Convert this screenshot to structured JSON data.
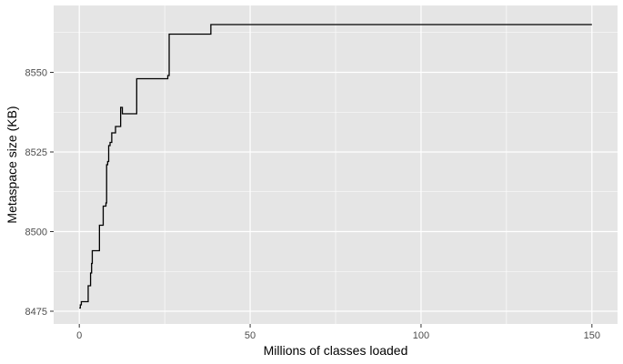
{
  "chart_data": {
    "type": "line",
    "line_style": "step",
    "title": "",
    "xlabel": "Millions of classes loaded",
    "ylabel": "Metaspace size (KB)",
    "xlim": [
      -7.5,
      157.5
    ],
    "ylim": [
      8471.0,
      8571.0
    ],
    "x_ticks": [
      0,
      50,
      100,
      150
    ],
    "x_tick_labels": [
      "0",
      "50",
      "100",
      "150"
    ],
    "x_minor_ticks": [
      25,
      75,
      125
    ],
    "y_ticks": [
      8475,
      8500,
      8525,
      8550
    ],
    "y_tick_labels": [
      "8475",
      "8500",
      "8525",
      "8550"
    ],
    "y_minor_ticks": [
      8487.5,
      8512.5,
      8537.5,
      8562.5
    ],
    "grid": true,
    "legend": "none",
    "colors": {
      "panel_background": "#e5e5e5",
      "grid_line": "#ffffff",
      "series_line": "#000000",
      "tick_text": "#4d4d4d"
    },
    "series": [
      {
        "x": [
          0.0,
          0.3,
          0.6,
          2.3,
          2.6,
          3.0,
          3.3,
          3.6,
          3.8,
          4.0,
          4.4,
          5.5,
          5.9,
          6.4,
          7.0,
          7.5,
          7.8,
          8.0,
          8.3,
          8.6,
          9.0,
          9.5,
          10.6,
          11.2,
          12.1,
          12.6,
          13.0,
          16.8,
          17.4,
          25.9,
          26.3,
          38.0,
          38.5,
          150.0
        ],
        "y": [
          8476.0,
          8477.0,
          8478.0,
          8478.0,
          8483.0,
          8483.0,
          8487.0,
          8490.0,
          8494.0,
          8494.0,
          8494.0,
          8494.0,
          8502.0,
          8502.0,
          8508.0,
          8508.0,
          8509.0,
          8521.0,
          8522.0,
          8527.0,
          8528.0,
          8531.0,
          8533.0,
          8533.0,
          8539.0,
          8537.0,
          8537.0,
          8548.0,
          8548.0,
          8549.0,
          8562.0,
          8562.0,
          8565.0,
          8565.0
        ]
      }
    ]
  }
}
